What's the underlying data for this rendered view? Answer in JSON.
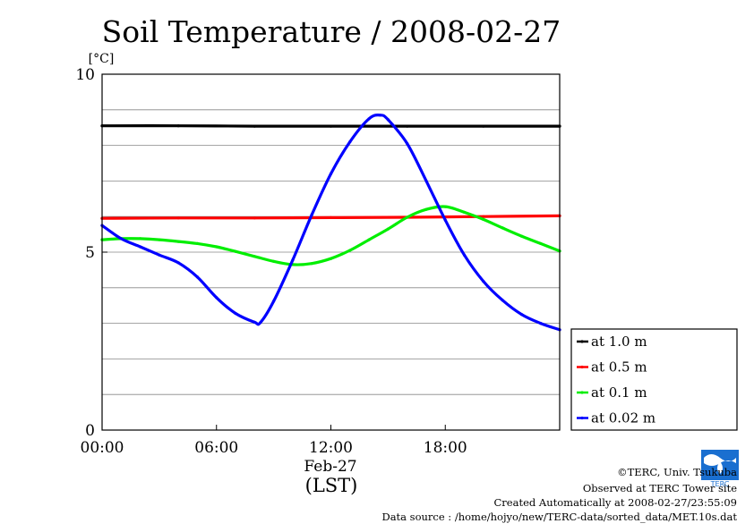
{
  "chart_data": {
    "type": "line",
    "title": "Soil Temperature / 2008-02-27",
    "y_unit": "[°C]",
    "ylim": [
      0,
      10
    ],
    "y_ticks": [
      {
        "value": 0,
        "label": "0"
      },
      {
        "value": 5,
        "label": "5"
      },
      {
        "value": 10,
        "label": "10"
      }
    ],
    "y_gridlines": [
      1,
      2,
      3,
      4,
      5,
      6,
      7,
      8,
      9
    ],
    "xlim": [
      0,
      24
    ],
    "x_ticks": [
      {
        "value": 0,
        "label": "00:00"
      },
      {
        "value": 6,
        "label": "06:00"
      },
      {
        "value": 12,
        "label": "12:00"
      },
      {
        "value": 18,
        "label": "18:00"
      }
    ],
    "x_date_label": "Feb-27",
    "x_timezone_label": "(LST)",
    "grid": true,
    "legend_placement": "right",
    "series": [
      {
        "name": "at 1.0 m",
        "color": "#000000",
        "x": [
          0,
          4,
          8,
          12,
          16,
          20,
          24
        ],
        "y": [
          8.55,
          8.55,
          8.54,
          8.54,
          8.54,
          8.54,
          8.54
        ]
      },
      {
        "name": "at 0.5 m",
        "color": "#ff0000",
        "x": [
          0,
          4,
          8,
          12,
          16,
          20,
          24
        ],
        "y": [
          5.95,
          5.96,
          5.96,
          5.97,
          5.98,
          6.0,
          6.02
        ]
      },
      {
        "name": "at 0.1 m",
        "color": "#00ee00",
        "x": [
          0,
          1,
          2,
          3,
          4,
          5,
          6,
          7,
          8,
          9,
          10,
          11,
          12,
          13,
          14,
          15,
          16,
          17,
          18,
          19,
          20,
          21,
          22,
          23,
          24
        ],
        "y": [
          5.35,
          5.38,
          5.38,
          5.35,
          5.3,
          5.24,
          5.15,
          5.02,
          4.88,
          4.74,
          4.65,
          4.68,
          4.82,
          5.05,
          5.35,
          5.65,
          5.98,
          6.2,
          6.28,
          6.12,
          5.92,
          5.68,
          5.45,
          5.24,
          5.03
        ]
      },
      {
        "name": "at 0.02 m",
        "color": "#0000ff",
        "x": [
          0,
          1,
          2,
          3,
          4,
          5,
          6,
          7,
          8,
          8.3,
          9,
          10,
          11,
          12,
          13,
          14,
          14.6,
          15,
          16,
          17,
          18,
          19,
          20,
          21,
          22,
          23,
          24
        ],
        "y": [
          5.75,
          5.38,
          5.15,
          4.92,
          4.7,
          4.3,
          3.72,
          3.28,
          3.03,
          3.02,
          3.62,
          4.78,
          6.05,
          7.2,
          8.1,
          8.75,
          8.85,
          8.72,
          8.05,
          7.0,
          5.9,
          4.92,
          4.18,
          3.65,
          3.25,
          3.0,
          2.82
        ]
      }
    ]
  },
  "credits": {
    "copyright": "©TERC, Univ. Tsukuba",
    "observed": "Observed at TERC Tower site",
    "created": "Created Automatically at 2008-02-27/23:55:09",
    "source": "Data source : /home/hojyo/new/TERC-data/sorted_data/MET.10s.dat"
  },
  "logo_text": "TERC"
}
